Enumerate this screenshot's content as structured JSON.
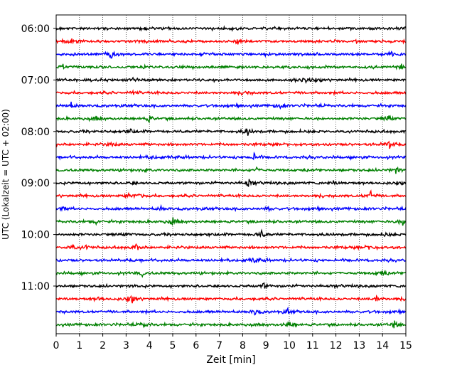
{
  "chart_data": {
    "type": "line",
    "title": "",
    "xlabel": "Zeit  [min]",
    "ylabel": "UTC (Lokalzeit = UTC + 02:00)",
    "xlim": [
      0,
      15
    ],
    "x_ticks": [
      "0",
      "1",
      "2",
      "3",
      "4",
      "5",
      "6",
      "7",
      "8",
      "9",
      "10",
      "11",
      "12",
      "13",
      "14",
      "15"
    ],
    "y_ticks": [
      "06:00",
      "07:00",
      "08:00",
      "09:00",
      "10:00",
      "11:00"
    ],
    "row_interval_minutes": 15,
    "start_time": "06:00",
    "grid": {
      "x": true,
      "y": false,
      "style": "dotted"
    },
    "colors": [
      "#000000",
      "#ff0000",
      "#0000ff",
      "#008000"
    ],
    "series": [
      {
        "start": "06:00",
        "color": "#000000",
        "events": [
          [
            3.8,
            0.4
          ],
          [
            7.5,
            0.35
          ]
        ]
      },
      {
        "start": "06:15",
        "color": "#ff0000",
        "events": [
          [
            0.7,
            0.9
          ],
          [
            7.8,
            0.5
          ]
        ]
      },
      {
        "start": "06:30",
        "color": "#0000ff",
        "events": [
          [
            2.35,
            1.0
          ],
          [
            14.4,
            0.5
          ]
        ]
      },
      {
        "start": "06:45",
        "color": "#008000",
        "events": [
          [
            0.3,
            0.6
          ],
          [
            14.85,
            1.0
          ]
        ]
      },
      {
        "start": "07:00",
        "color": "#000000",
        "events": [
          [
            3.3,
            0.3
          ],
          [
            10.75,
            1.0
          ]
        ]
      },
      {
        "start": "07:15",
        "color": "#ff0000",
        "events": [
          [
            3.3,
            0.4
          ],
          [
            8.1,
            0.5
          ]
        ]
      },
      {
        "start": "07:30",
        "color": "#0000ff",
        "events": [
          [
            0.65,
            0.8
          ],
          [
            9.6,
            0.7
          ]
        ]
      },
      {
        "start": "07:45",
        "color": "#008000",
        "events": [
          [
            1.7,
            0.5
          ],
          [
            4.0,
            0.9
          ],
          [
            14.25,
            1.0
          ]
        ]
      },
      {
        "start": "08:00",
        "color": "#000000",
        "events": [
          [
            3.2,
            0.4
          ],
          [
            8.2,
            1.0
          ]
        ]
      },
      {
        "start": "08:15",
        "color": "#ff0000",
        "events": [
          [
            2.4,
            0.5
          ],
          [
            14.3,
            1.0
          ]
        ]
      },
      {
        "start": "08:30",
        "color": "#0000ff",
        "events": [
          [
            4.1,
            0.4
          ],
          [
            8.5,
            0.7
          ]
        ]
      },
      {
        "start": "08:45",
        "color": "#008000",
        "events": [
          [
            3.8,
            0.4
          ],
          [
            8.6,
            0.5
          ],
          [
            14.6,
            1.0
          ]
        ]
      },
      {
        "start": "09:00",
        "color": "#000000",
        "events": [
          [
            3.3,
            0.3
          ],
          [
            8.25,
            1.0
          ],
          [
            11.9,
            0.5
          ]
        ]
      },
      {
        "start": "09:15",
        "color": "#ff0000",
        "events": [
          [
            3.1,
            0.5
          ],
          [
            3.6,
            0.8
          ],
          [
            13.5,
            0.9
          ]
        ]
      },
      {
        "start": "09:30",
        "color": "#0000ff",
        "events": [
          [
            0.3,
            0.6
          ],
          [
            4.5,
            0.4
          ],
          [
            9.1,
            0.4
          ]
        ]
      },
      {
        "start": "09:45",
        "color": "#008000",
        "events": [
          [
            1.7,
            0.5
          ],
          [
            5.0,
            1.0
          ],
          [
            14.85,
            1.0
          ]
        ]
      },
      {
        "start": "10:00",
        "color": "#000000",
        "events": [
          [
            3.0,
            0.4
          ],
          [
            8.8,
            1.0
          ],
          [
            14.1,
            0.4
          ]
        ]
      },
      {
        "start": "10:15",
        "color": "#ff0000",
        "events": [
          [
            0.7,
            0.7
          ],
          [
            1.3,
            0.5
          ],
          [
            3.45,
            0.9
          ],
          [
            13.5,
            0.9
          ]
        ]
      },
      {
        "start": "10:30",
        "color": "#0000ff",
        "events": [
          [
            8.5,
            0.7
          ]
        ]
      },
      {
        "start": "10:45",
        "color": "#008000",
        "events": [
          [
            3.7,
            0.6
          ],
          [
            13.95,
            1.0
          ]
        ]
      },
      {
        "start": "11:00",
        "color": "#000000",
        "events": [
          [
            3.4,
            0.3
          ],
          [
            8.9,
            0.8
          ]
        ]
      },
      {
        "start": "11:15",
        "color": "#ff0000",
        "events": [
          [
            1.8,
            0.5
          ],
          [
            3.25,
            0.9
          ],
          [
            13.75,
            0.8
          ]
        ]
      },
      {
        "start": "11:30",
        "color": "#0000ff",
        "events": [
          [
            8.55,
            0.8
          ],
          [
            9.95,
            0.6
          ]
        ]
      },
      {
        "start": "11:45",
        "color": "#008000",
        "events": [
          [
            3.8,
            0.7
          ],
          [
            10.0,
            1.0
          ],
          [
            14.5,
            0.9
          ]
        ]
      }
    ]
  }
}
